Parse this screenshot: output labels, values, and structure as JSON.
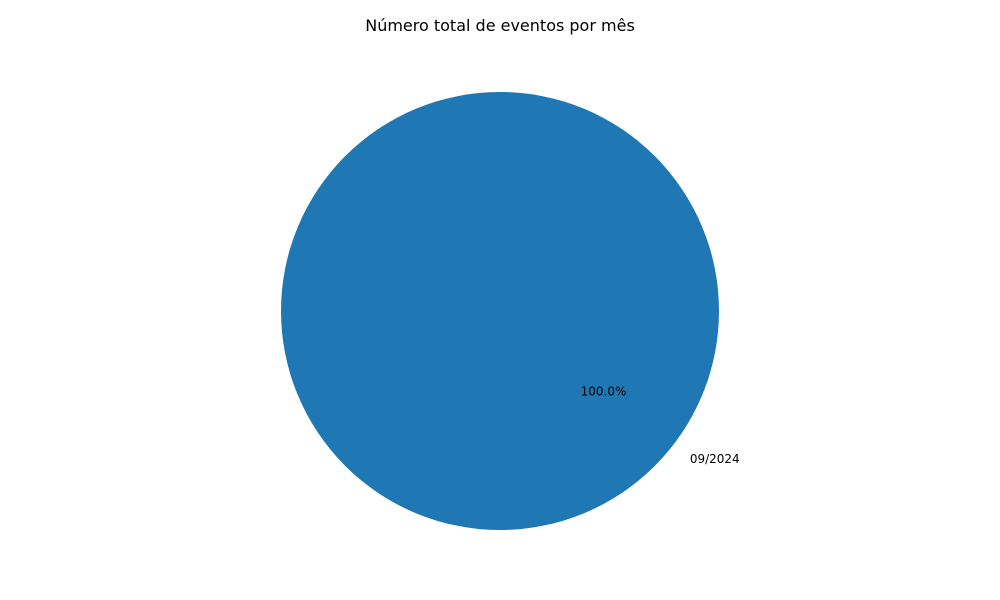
{
  "chart_data": {
    "type": "pie",
    "title": "Número total de eventos por mês",
    "labels": [
      "09/2024"
    ],
    "values": [
      100
    ],
    "percent_labels": [
      "100.0%"
    ],
    "colors": [
      "#1f77b4"
    ],
    "legend": "none",
    "grid": false
  }
}
